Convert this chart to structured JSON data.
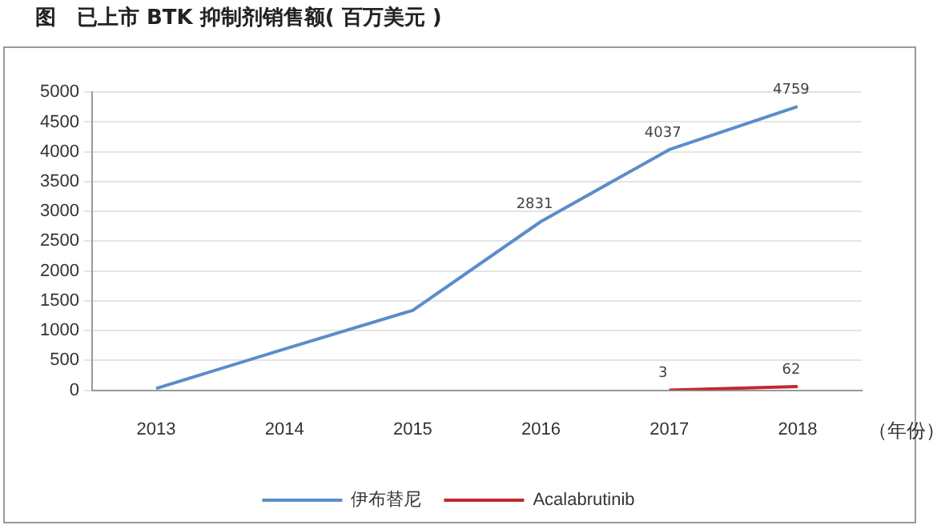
{
  "chart_data": {
    "type": "line",
    "title": "图　已上市 BTK 抑制剂销售额( 百万美元 )",
    "xlabel": "（年份）",
    "categories": [
      "2013",
      "2014",
      "2015",
      "2016",
      "2017",
      "2018"
    ],
    "series": [
      {
        "name": "伊布替尼",
        "color": "#5b8dc8",
        "values": [
          30,
          690,
          1340,
          2831,
          4037,
          4759
        ],
        "value_labels": [
          null,
          null,
          null,
          "2831",
          "4037",
          "4759"
        ]
      },
      {
        "name": "Acalabrutinib",
        "color": "#c0282e",
        "values": [
          null,
          null,
          null,
          null,
          3,
          62
        ],
        "value_labels": [
          null,
          null,
          null,
          null,
          "3",
          "62"
        ]
      }
    ],
    "ylim": [
      0,
      5000
    ],
    "yticks": [
      0,
      500,
      1000,
      1500,
      2000,
      2500,
      3000,
      3500,
      4000,
      4500,
      5000
    ],
    "grid": "y",
    "legend": "bottom",
    "marker": "none",
    "line_style": "solid"
  }
}
